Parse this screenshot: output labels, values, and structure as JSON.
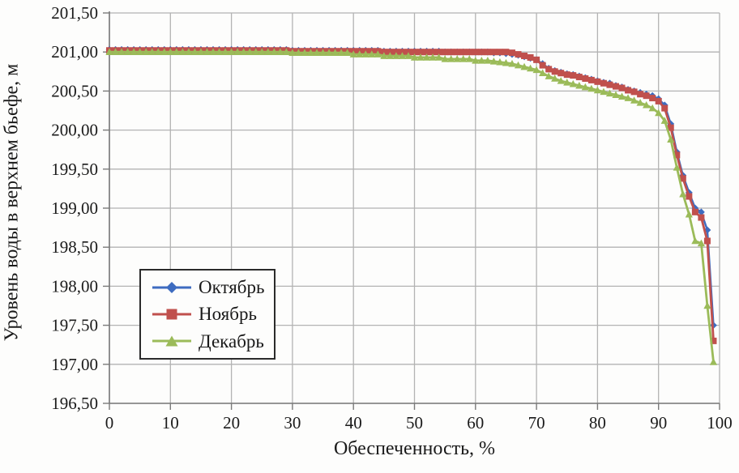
{
  "page": {
    "background": "#fdfdfc"
  },
  "chart_data": {
    "type": "line",
    "title": "",
    "xlabel": "Обеспеченность, %",
    "ylabel": "Уровень воды в верхнем бьефе, м",
    "xlim": [
      0,
      100
    ],
    "ylim": [
      196.5,
      201.5
    ],
    "x_tick_step": 10,
    "y_tick_step": 0.5,
    "x_tick_labels": [
      "0",
      "10",
      "20",
      "30",
      "40",
      "50",
      "60",
      "70",
      "80",
      "90",
      "100"
    ],
    "y_tick_labels": [
      "201,50",
      "201,00",
      "200,50",
      "200,00",
      "199,50",
      "199,00",
      "198,50",
      "198,00",
      "197,50",
      "197,00",
      "196,50"
    ],
    "grid": true,
    "legend_position": "inside-left",
    "colors": {
      "grid": "#b3b3b3",
      "axis": "#7a7a7a",
      "tick_text": "#1a1a1a",
      "legend_border": "#2b2b2b"
    },
    "x": [
      0,
      1,
      2,
      3,
      4,
      5,
      6,
      7,
      8,
      9,
      10,
      11,
      12,
      13,
      14,
      15,
      16,
      17,
      18,
      19,
      20,
      21,
      22,
      23,
      24,
      25,
      26,
      27,
      28,
      29,
      30,
      31,
      32,
      33,
      34,
      35,
      36,
      37,
      38,
      39,
      40,
      41,
      42,
      43,
      44,
      45,
      46,
      47,
      48,
      49,
      50,
      51,
      52,
      53,
      54,
      55,
      56,
      57,
      58,
      59,
      60,
      61,
      62,
      63,
      64,
      65,
      66,
      67,
      68,
      69,
      70,
      71,
      72,
      73,
      74,
      75,
      76,
      77,
      78,
      79,
      80,
      81,
      82,
      83,
      84,
      85,
      86,
      87,
      88,
      89,
      90,
      91,
      92,
      93,
      94,
      95,
      96,
      97,
      98,
      99
    ],
    "series": [
      {
        "name": "Октябрь",
        "color": "#3e6cc0",
        "marker": "diamond",
        "values": [
          201.03,
          201.03,
          201.03,
          201.03,
          201.03,
          201.03,
          201.03,
          201.03,
          201.03,
          201.03,
          201.03,
          201.03,
          201.03,
          201.03,
          201.03,
          201.03,
          201.03,
          201.03,
          201.03,
          201.03,
          201.03,
          201.03,
          201.03,
          201.03,
          201.03,
          201.03,
          201.03,
          201.03,
          201.03,
          201.03,
          201.02,
          201.02,
          201.02,
          201.02,
          201.02,
          201.02,
          201.02,
          201.02,
          201.02,
          201.02,
          201.02,
          201.02,
          201.02,
          201.02,
          201.02,
          201.01,
          201.01,
          201.01,
          201.01,
          201.01,
          201.01,
          201.01,
          201.01,
          201.01,
          201.01,
          201.0,
          201.0,
          201.0,
          201.0,
          201.0,
          201.0,
          201.0,
          201.0,
          200.99,
          200.99,
          200.98,
          200.97,
          200.96,
          200.94,
          200.92,
          200.9,
          200.85,
          200.79,
          200.76,
          200.74,
          200.72,
          200.71,
          200.69,
          200.67,
          200.65,
          200.63,
          200.61,
          200.6,
          200.57,
          200.55,
          200.52,
          200.5,
          200.48,
          200.46,
          200.44,
          200.4,
          200.32,
          200.08,
          199.72,
          199.42,
          199.2,
          199.0,
          198.95,
          198.72,
          197.5
        ]
      },
      {
        "name": "Ноябрь",
        "color": "#c0504d",
        "marker": "square",
        "values": [
          201.02,
          201.02,
          201.02,
          201.02,
          201.02,
          201.02,
          201.02,
          201.02,
          201.02,
          201.02,
          201.02,
          201.02,
          201.02,
          201.02,
          201.02,
          201.02,
          201.02,
          201.02,
          201.02,
          201.02,
          201.02,
          201.02,
          201.02,
          201.02,
          201.02,
          201.02,
          201.02,
          201.02,
          201.02,
          201.02,
          201.01,
          201.01,
          201.01,
          201.01,
          201.01,
          201.01,
          201.01,
          201.01,
          201.01,
          201.01,
          201.01,
          201.01,
          201.01,
          201.01,
          201.01,
          201.0,
          201.0,
          201.0,
          201.0,
          201.0,
          201.0,
          201.0,
          201.0,
          201.0,
          201.0,
          201.0,
          201.0,
          201.0,
          201.0,
          201.0,
          201.0,
          201.0,
          201.0,
          201.0,
          201.0,
          201.0,
          200.99,
          200.97,
          200.95,
          200.93,
          200.9,
          200.83,
          200.78,
          200.75,
          200.73,
          200.71,
          200.7,
          200.68,
          200.66,
          200.64,
          200.62,
          200.6,
          200.58,
          200.56,
          200.54,
          200.51,
          200.49,
          200.46,
          200.44,
          200.41,
          200.37,
          200.28,
          200.03,
          199.68,
          199.38,
          199.15,
          198.95,
          198.88,
          198.58,
          197.3
        ]
      },
      {
        "name": "Декабрь",
        "color": "#9bbb59",
        "marker": "triangle",
        "values": [
          201.0,
          201.0,
          201.0,
          201.0,
          201.0,
          201.0,
          201.0,
          201.0,
          201.0,
          201.0,
          201.0,
          201.0,
          201.0,
          201.0,
          201.0,
          201.0,
          201.0,
          201.0,
          201.0,
          201.0,
          201.0,
          201.0,
          201.0,
          201.0,
          201.0,
          201.0,
          201.0,
          201.0,
          201.0,
          201.0,
          200.99,
          200.99,
          200.99,
          200.99,
          200.99,
          200.99,
          200.99,
          200.99,
          200.99,
          200.99,
          200.97,
          200.97,
          200.97,
          200.97,
          200.97,
          200.95,
          200.95,
          200.95,
          200.95,
          200.95,
          200.93,
          200.93,
          200.93,
          200.93,
          200.93,
          200.91,
          200.91,
          200.91,
          200.91,
          200.91,
          200.89,
          200.89,
          200.89,
          200.88,
          200.87,
          200.86,
          200.85,
          200.83,
          200.81,
          200.79,
          200.77,
          200.73,
          200.69,
          200.66,
          200.63,
          200.61,
          200.59,
          200.57,
          200.55,
          200.53,
          200.51,
          200.49,
          200.47,
          200.45,
          200.43,
          200.41,
          200.38,
          200.35,
          200.32,
          200.28,
          200.22,
          200.12,
          199.88,
          199.52,
          199.18,
          198.92,
          198.58,
          198.55,
          197.75,
          197.03
        ]
      }
    ]
  }
}
